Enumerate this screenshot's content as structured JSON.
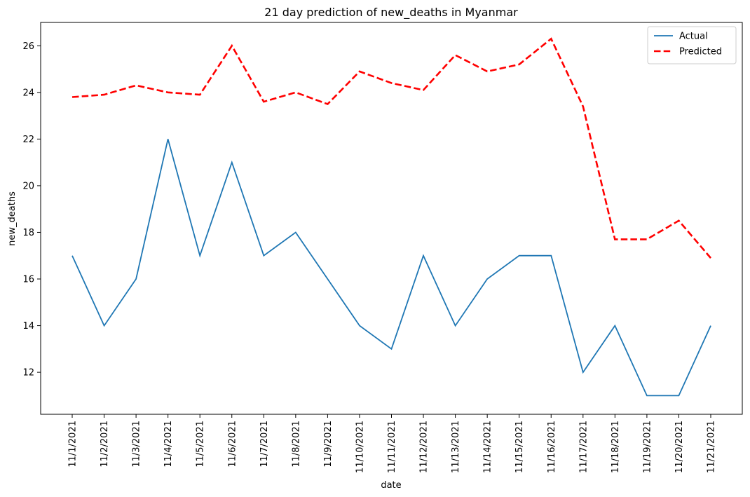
{
  "chart_data": {
    "type": "line",
    "title": "21 day prediction of new_deaths in Myanmar",
    "xlabel": "date",
    "ylabel": "new_deaths",
    "x": [
      "11/1/2021",
      "11/2/2021",
      "11/3/2021",
      "11/4/2021",
      "11/5/2021",
      "11/6/2021",
      "11/7/2021",
      "11/8/2021",
      "11/9/2021",
      "11/10/2021",
      "11/11/2021",
      "11/12/2021",
      "11/13/2021",
      "11/14/2021",
      "11/15/2021",
      "11/16/2021",
      "11/17/2021",
      "11/18/2021",
      "11/19/2021",
      "11/20/2021",
      "11/21/2021"
    ],
    "yticks": [
      12,
      14,
      16,
      18,
      20,
      22,
      24,
      26
    ],
    "ylim": [
      10.2,
      27.0
    ],
    "grid": false,
    "legend_position": "top-right",
    "series": [
      {
        "name": "Actual",
        "color": "#1f77b4",
        "style": "solid",
        "values": [
          17,
          14,
          16,
          22,
          17,
          21,
          17,
          18,
          16,
          14,
          13,
          17,
          14,
          16,
          17,
          17,
          12,
          14,
          11,
          11,
          14
        ]
      },
      {
        "name": "Predicted",
        "color": "#ff0000",
        "style": "dashed",
        "values": [
          23.8,
          23.9,
          24.3,
          24.0,
          23.9,
          26.0,
          23.6,
          24.0,
          23.5,
          24.9,
          24.4,
          24.1,
          25.6,
          24.9,
          25.2,
          26.3,
          23.4,
          17.7,
          17.7,
          18.5,
          16.9
        ]
      }
    ]
  }
}
